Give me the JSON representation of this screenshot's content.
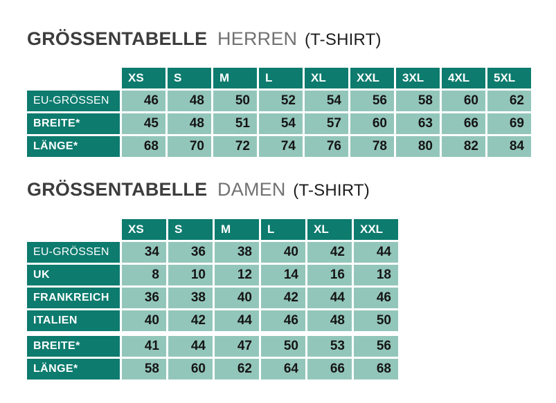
{
  "colors": {
    "header_cell_bg": "#0d7b6e",
    "value_cell_bg": "#93c6ba",
    "header_text": "#ffffff",
    "value_text": "#151515",
    "title_main": "#3d3d3d",
    "title_category": "#717171",
    "title_note": "#1c1c1c",
    "page_bg": "#ffffff"
  },
  "sections": [
    {
      "title": {
        "main": "GRÖSSENTABELLE",
        "category": "HERREN",
        "note": "(T-SHIRT)"
      },
      "table": {
        "columns": [
          "XS",
          "S",
          "M",
          "L",
          "XL",
          "XXL",
          "3XL",
          "4XL",
          "5XL"
        ],
        "rows": [
          {
            "label": "EU-GRÖSSEN",
            "emphasis": false,
            "values": [
              "46",
              "48",
              "50",
              "52",
              "54",
              "56",
              "58",
              "60",
              "62"
            ]
          },
          {
            "label": "BREITE*",
            "emphasis": true,
            "values": [
              "45",
              "48",
              "51",
              "54",
              "57",
              "60",
              "63",
              "66",
              "69"
            ]
          },
          {
            "label": "LÄNGE*",
            "emphasis": true,
            "values": [
              "68",
              "70",
              "72",
              "74",
              "76",
              "78",
              "80",
              "82",
              "84"
            ]
          }
        ]
      }
    },
    {
      "title": {
        "main": "GRÖSSENTABELLE",
        "category": "DAMEN",
        "note": "(T-SHIRT)"
      },
      "table": {
        "columns": [
          "XS",
          "S",
          "M",
          "L",
          "XL",
          "XXL"
        ],
        "rows": [
          {
            "label": "EU-GRÖSSEN",
            "emphasis": false,
            "values": [
              "34",
              "36",
              "38",
              "40",
              "42",
              "44"
            ]
          },
          {
            "label": "UK",
            "emphasis": true,
            "values": [
              "8",
              "10",
              "12",
              "14",
              "16",
              "18"
            ]
          },
          {
            "label": "FRANKREICH",
            "emphasis": true,
            "values": [
              "36",
              "38",
              "40",
              "42",
              "44",
              "46"
            ]
          },
          {
            "label": "ITALIEN",
            "emphasis": true,
            "values": [
              "40",
              "42",
              "44",
              "46",
              "48",
              "50"
            ]
          },
          {
            "label": "BREITE*",
            "emphasis": true,
            "gap_before": true,
            "values": [
              "41",
              "44",
              "47",
              "50",
              "53",
              "56"
            ]
          },
          {
            "label": "LÄNGE*",
            "emphasis": true,
            "values": [
              "58",
              "60",
              "62",
              "64",
              "66",
              "68"
            ]
          }
        ]
      }
    }
  ]
}
